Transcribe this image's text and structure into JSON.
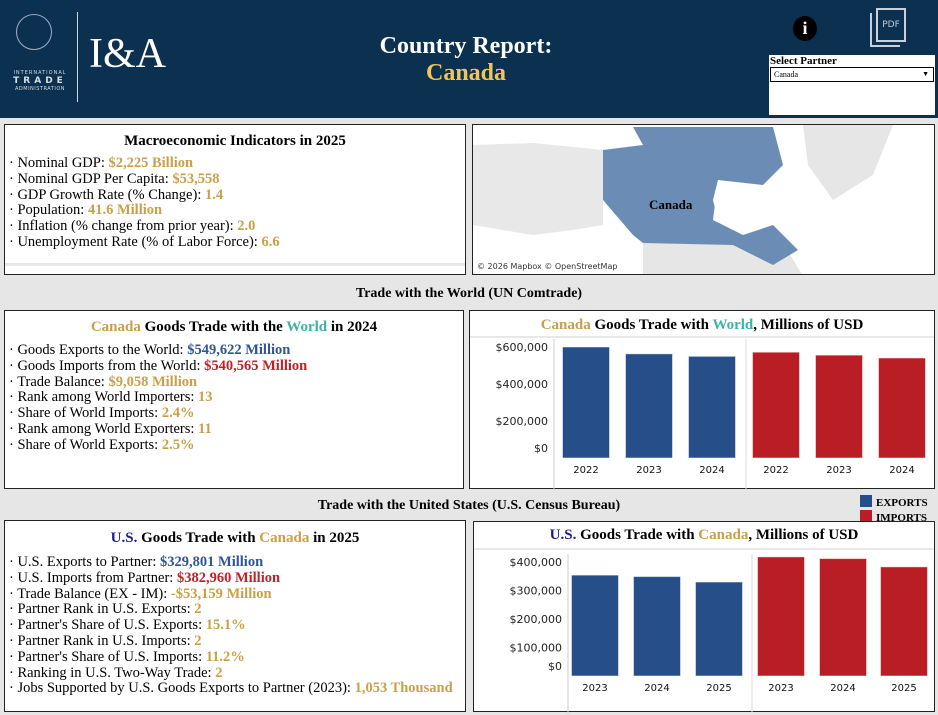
{
  "header": {
    "logo_text": [
      "INTERNATIONAL",
      "TRADE",
      "ADMINISTRATION"
    ],
    "brand": "I&A",
    "title": "Country Report:",
    "country": "Canada",
    "info_icon": "info-icon",
    "pdf_icon": "pdf-icon",
    "pdf_label": "PDF",
    "select_label": "Select Partner",
    "select_value": "Canada"
  },
  "macro": {
    "title": "Macroeconomic Indicators in 2025",
    "items": [
      {
        "label": "· Nominal GDP: ",
        "value": "$2,225 Billion"
      },
      {
        "label": "· Nominal GDP Per Capita: ",
        "value": "$53,558"
      },
      {
        "label": "· GDP Growth Rate (% Change): ",
        "value": "1.4"
      },
      {
        "label": "· Population: ",
        "value": "41.6 Million"
      },
      {
        "label": "· Inflation (% change from prior year): ",
        "value": "2.0"
      },
      {
        "label": "· Unemployment Rate (% of Labor Force): ",
        "value": "6.6"
      }
    ]
  },
  "map": {
    "label": "Canada",
    "attribution": "© 2026 Mapbox  © OpenStreetMap",
    "fill": "#6b8db5"
  },
  "world_section": "Trade with the World (UN Comtrade)",
  "world": {
    "title_country": "Canada",
    "title_mid": " Goods Trade with the ",
    "title_world": "World",
    "title_end": " in 2024",
    "items": [
      {
        "label": "· Goods Exports to the World: ",
        "value": "$549,622 Million",
        "color": "blue"
      },
      {
        "label": "· Goods Imports from the World: ",
        "value": "$540,565 Million",
        "color": "red"
      },
      {
        "label": "· Trade Balance:  ",
        "value": "$9,058 Million",
        "color": "gold"
      },
      {
        "label": "· Rank among World Importers: ",
        "value": "13",
        "color": "gold"
      },
      {
        "label": "· Share of World Imports: ",
        "value": "2.4%",
        "color": "gold"
      },
      {
        "label": "· Rank among World Exporters: ",
        "value": "11",
        "color": "gold"
      },
      {
        "label": "· Share of World Exports: ",
        "value": "2.5%",
        "color": "gold"
      }
    ]
  },
  "us_section": "Trade with the United States (U.S. Census Bureau)",
  "legend": [
    {
      "label": "EXPORTS",
      "color": "#264f8a"
    },
    {
      "label": "IMPORTS",
      "color": "#b81e24"
    }
  ],
  "us": {
    "title_us": "U.S.",
    "title_mid": " Goods Trade with ",
    "title_country": "Canada",
    "title_end": " in 2025",
    "items": [
      {
        "label": "· U.S. Exports to Partner: ",
        "value": "$329,801 Million",
        "color": "blue"
      },
      {
        "label": "· U.S. Imports from Partner: ",
        "value": "$382,960 Million",
        "color": "red"
      },
      {
        "label": "· Trade Balance (EX - IM): ",
        "value": "-$53,159 Million",
        "color": "gold"
      },
      {
        "label": "· Partner Rank in U.S. Exports: ",
        "value": "2",
        "color": "gold"
      },
      {
        "label": "· Partner's Share of U.S. Exports: ",
        "value": "15.1%",
        "color": "gold"
      },
      {
        "label": "· Partner Rank in U.S. Imports: ",
        "value": "2",
        "color": "gold"
      },
      {
        "label": "· Partner's Share of U.S. Imports: ",
        "value": "11.2%",
        "color": "gold"
      },
      {
        "label": "· Ranking in U.S. Two-Way Trade: ",
        "value": "2",
        "color": "gold"
      },
      {
        "label": "· Jobs Supported by U.S. Goods Exports to Partner (2023): ",
        "value": "1,053 Thousand",
        "color": "gold"
      }
    ]
  },
  "chart_data": [
    {
      "type": "bar",
      "title_country": "Canada",
      "title_mid": " Goods Trade with ",
      "title_world": "World",
      "title_end": ", Millions of USD",
      "ylim": [
        0,
        600000
      ],
      "yticks": [
        0,
        200000,
        400000,
        600000
      ],
      "ytick_labels": [
        "$0",
        "$200,000",
        "$400,000",
        "$600,000"
      ],
      "grid": false,
      "series": [
        {
          "name": "EXPORTS",
          "color": "#264f8a",
          "categories": [
            "2022",
            "2023",
            "2024"
          ],
          "values": [
            600000,
            563000,
            549622
          ]
        },
        {
          "name": "IMPORTS",
          "color": "#b81e24",
          "categories": [
            "2022",
            "2023",
            "2024"
          ],
          "values": [
            572000,
            556000,
            540565
          ]
        }
      ]
    },
    {
      "type": "bar",
      "title_us": "U.S.",
      "title_mid": " Goods Trade with ",
      "title_country": "Canada",
      "title_end": ", Millions of USD",
      "ylim": [
        0,
        400000
      ],
      "yticks": [
        0,
        100000,
        200000,
        300000,
        400000
      ],
      "ytick_labels": [
        "$0",
        "$100,000",
        "$200,000",
        "$300,000",
        "$400,000"
      ],
      "grid": false,
      "series": [
        {
          "name": "EXPORTS",
          "color": "#264f8a",
          "categories": [
            "2023",
            "2024",
            "2025"
          ],
          "values": [
            354000,
            349000,
            329801
          ]
        },
        {
          "name": "IMPORTS",
          "color": "#b81e24",
          "categories": [
            "2023",
            "2024",
            "2025"
          ],
          "values": [
            418000,
            412000,
            382960
          ]
        }
      ]
    }
  ]
}
